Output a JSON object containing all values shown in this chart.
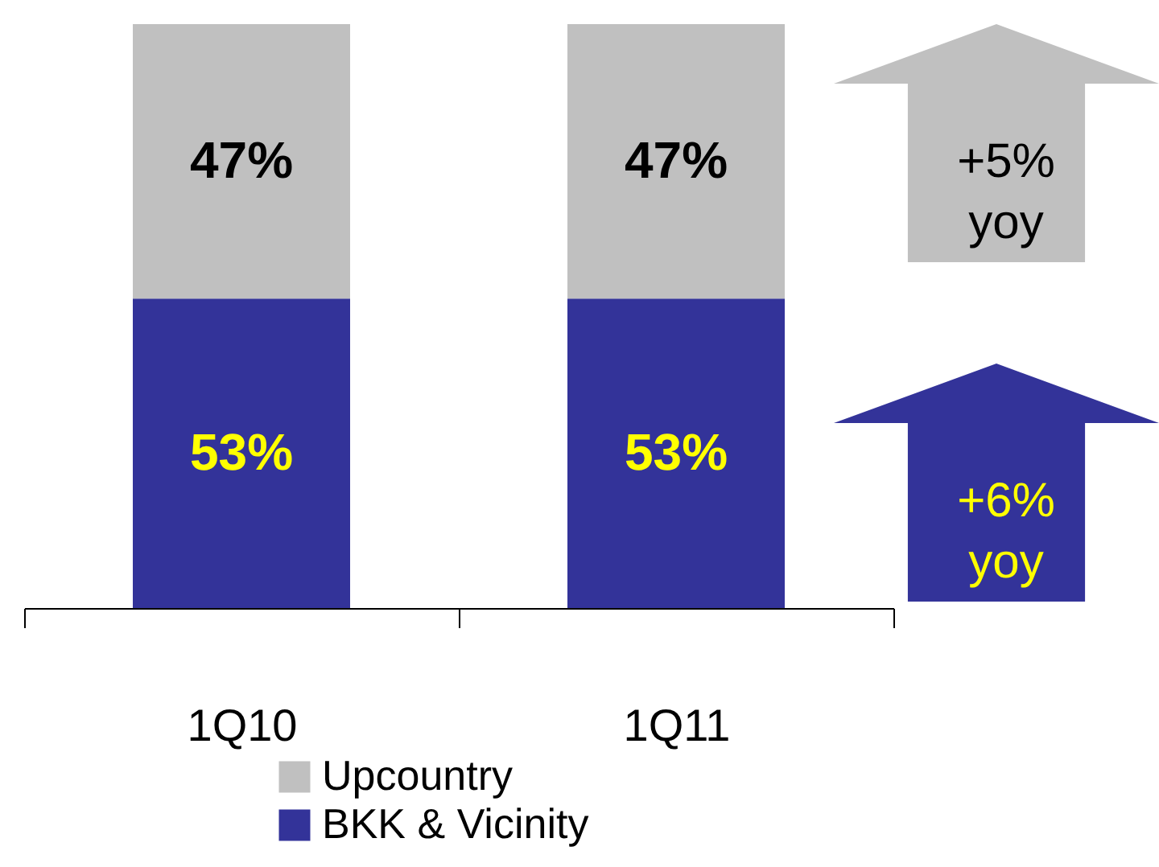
{
  "chart_data": {
    "type": "bar",
    "stacked": true,
    "data_labels": true,
    "legend": "bottom",
    "categories": [
      "1Q10",
      "1Q11"
    ],
    "series": [
      {
        "name": "BKK & Vicinity",
        "color": "#333399",
        "values": [
          53,
          53
        ],
        "value_labels": [
          "53%",
          "53%"
        ]
      },
      {
        "name": "Upcountry",
        "color": "#c0c0c0",
        "values": [
          47,
          47
        ],
        "value_labels": [
          "47%",
          "47%"
        ]
      }
    ],
    "annotations": [
      "+5% yoy",
      "+6% yoy"
    ]
  }
}
